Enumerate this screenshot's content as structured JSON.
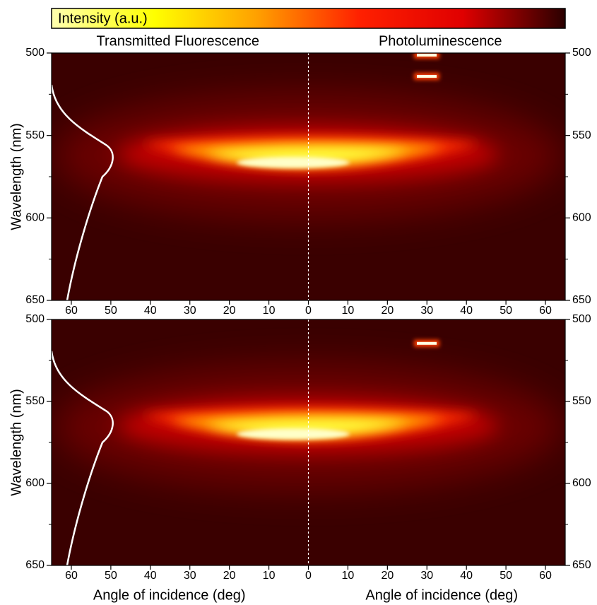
{
  "colorbar": {
    "label": "Intensity (a.u.)",
    "colors": [
      "#ffffb0",
      "#ffff00",
      "#ffa000",
      "#ff2000",
      "#e00000",
      "#2a0000"
    ]
  },
  "chart_data": [
    {
      "type": "heatmap",
      "panel_titles": [
        "Transmitted Fluorescence",
        "Photoluminescence"
      ],
      "ylabel": "Wavelength (nm)",
      "ylim": [
        500,
        650
      ],
      "y_inverted": true,
      "yticks": [
        500,
        550,
        600,
        650
      ],
      "yticks_minor": [
        525,
        575,
        625
      ],
      "xlim": [
        -65,
        65
      ],
      "xticks": [
        {
          "value": -60,
          "label": "60"
        },
        {
          "value": -50,
          "label": "50"
        },
        {
          "value": -40,
          "label": "40"
        },
        {
          "value": -30,
          "label": "30"
        },
        {
          "value": -20,
          "label": "20"
        },
        {
          "value": -10,
          "label": "10"
        },
        0,
        10,
        20,
        30,
        40,
        50,
        60
      ]
    },
    {
      "type": "heatmap",
      "xlabels": [
        "Angle of incidence (deg)",
        "Angle of incidence (deg)"
      ],
      "ylabel": "Wavelength (nm)",
      "ylim": [
        500,
        650
      ],
      "y_inverted": true,
      "yticks": [
        500,
        550,
        600,
        650
      ],
      "yticks_minor": [
        525,
        575,
        625
      ],
      "xlim": [
        -65,
        65
      ],
      "xticks": [
        {
          "value": -60,
          "label": "60"
        },
        {
          "value": -50,
          "label": "50"
        },
        {
          "value": -40,
          "label": "40"
        },
        {
          "value": -30,
          "label": "30"
        },
        {
          "value": -20,
          "label": "20"
        },
        {
          "value": -10,
          "label": "10"
        },
        0,
        10,
        20,
        30,
        40,
        50,
        60
      ]
    }
  ]
}
